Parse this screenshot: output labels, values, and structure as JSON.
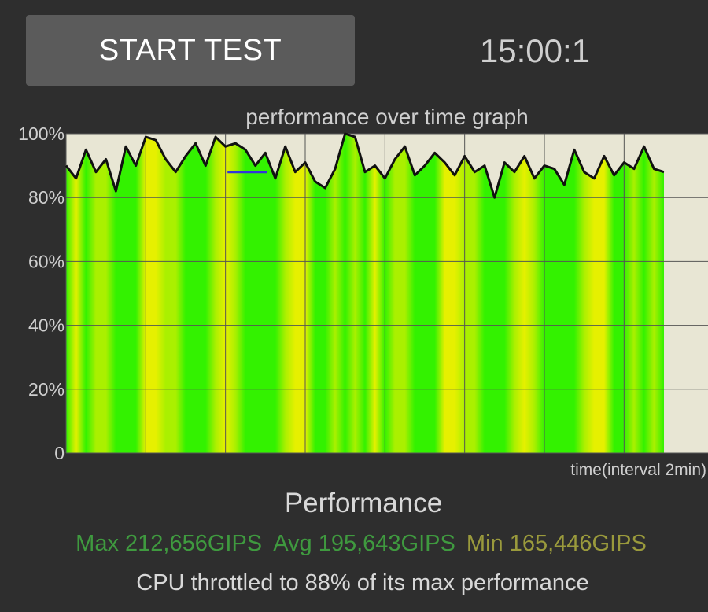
{
  "controls": {
    "start_label": "START TEST",
    "timer": "15:00:1"
  },
  "chart_data": {
    "type": "area",
    "title": "performance over time graph",
    "xlabel": "time(interval 2min)",
    "ylabel": "",
    "ylim": [
      0,
      100
    ],
    "yticks": [
      "0",
      "20%",
      "40%",
      "60%",
      "80%",
      "100%"
    ],
    "yticks_values": [
      0,
      20,
      40,
      60,
      80,
      100
    ],
    "x_unit": "minutes",
    "x_gridline_interval": 2,
    "x_range": [
      0,
      15
    ],
    "grid": true,
    "reference_line": {
      "value": 88,
      "x_start": 4.05,
      "x_end": 5.05,
      "color": "#3333dd"
    },
    "colors": {
      "plot_background": "#e8e6d4",
      "fill_green": "#33f200",
      "fill_lime": "#aaf000",
      "fill_yellow": "#e6f000",
      "line": "#111111",
      "grid": "#555555"
    },
    "series": [
      {
        "x": [
          0.0,
          0.25,
          0.5,
          0.75,
          1.0,
          1.25,
          1.5,
          1.75,
          2.0,
          2.25,
          2.5,
          2.75,
          3.0,
          3.25,
          3.5,
          3.75,
          4.0,
          4.25,
          4.5,
          4.75,
          5.0,
          5.25,
          5.5,
          5.75,
          6.0,
          6.25,
          6.5,
          6.75,
          7.0,
          7.25,
          7.5,
          7.75,
          8.0,
          8.25,
          8.5,
          8.75,
          9.0,
          9.25,
          9.5,
          9.75,
          10.0,
          10.25,
          10.5,
          10.75,
          11.0,
          11.25,
          11.5,
          11.75,
          12.0,
          12.25,
          12.5,
          12.75,
          13.0,
          13.25,
          13.5,
          13.75,
          14.0,
          14.25,
          14.5,
          14.75,
          15.0
        ],
        "values": [
          90,
          86,
          95,
          88,
          92,
          82,
          96,
          90,
          99,
          98,
          92,
          88,
          93,
          97,
          90,
          99,
          96,
          97,
          95,
          90,
          94,
          86,
          96,
          88,
          91,
          85,
          83,
          89,
          100,
          99,
          88,
          90,
          86,
          92,
          96,
          87,
          90,
          94,
          91,
          87,
          93,
          88,
          90,
          80,
          91,
          88,
          93,
          86,
          90,
          89,
          84,
          95,
          88,
          86,
          93,
          87,
          91,
          89,
          96,
          89,
          88
        ]
      }
    ],
    "stats": {
      "heading": "Performance",
      "max_label": "Max 212,656GIPS",
      "avg_label": "Avg 195,643GIPS",
      "min_label": "Min 165,446GIPS",
      "throttle_text": "CPU throttled to 88% of its max performance"
    }
  }
}
